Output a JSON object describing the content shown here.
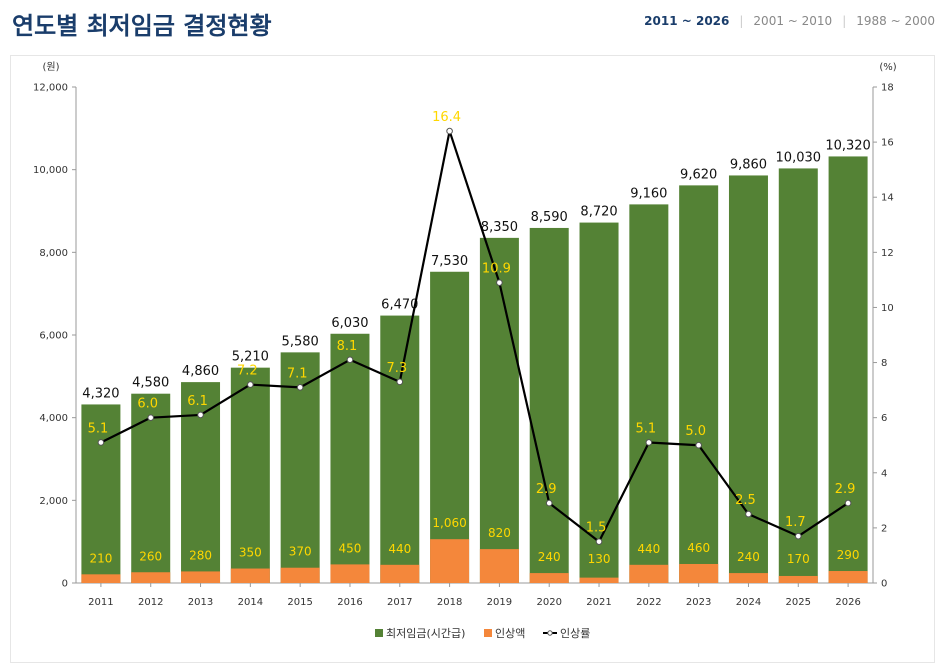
{
  "header": {
    "title": "연도별 최저임금 결정현황",
    "tabs": [
      {
        "label": "2011 ~ 2026",
        "active": true
      },
      {
        "label": "2001 ~ 2010",
        "active": false
      },
      {
        "label": "1988 ~ 2000",
        "active": false
      }
    ]
  },
  "colors": {
    "title": "#1a3d6b",
    "wage_bar": "#548235",
    "increase_bar": "#f4873b",
    "rate_line": "#000000",
    "rate_label": "#ffd700",
    "grid": "#e0e0e0"
  },
  "chart_data": {
    "type": "bar",
    "categories": [
      "2011",
      "2012",
      "2013",
      "2014",
      "2015",
      "2016",
      "2017",
      "2018",
      "2019",
      "2020",
      "2021",
      "2022",
      "2023",
      "2024",
      "2025",
      "2026"
    ],
    "series": [
      {
        "name": "최저임금(시간급)",
        "type": "bar",
        "axis": "left",
        "values": [
          4320,
          4580,
          4860,
          5210,
          5580,
          6030,
          6470,
          7530,
          8350,
          8590,
          8720,
          9160,
          9620,
          9860,
          10030,
          10320
        ],
        "labels": [
          "4,320",
          "4,580",
          "4,860",
          "5,210",
          "5,580",
          "6,030",
          "6,470",
          "7,530",
          "8,350",
          "8,590",
          "8,720",
          "9,160",
          "9,620",
          "9,860",
          "10,030",
          "10,320"
        ]
      },
      {
        "name": "인상액",
        "type": "bar",
        "axis": "left",
        "values": [
          210,
          260,
          280,
          350,
          370,
          450,
          440,
          1060,
          820,
          240,
          130,
          440,
          460,
          240,
          170,
          290
        ],
        "labels": [
          "210",
          "260",
          "280",
          "350",
          "370",
          "450",
          "440",
          "1,060",
          "820",
          "240",
          "130",
          "440",
          "460",
          "240",
          "170",
          "290"
        ]
      },
      {
        "name": "인상률",
        "type": "line",
        "axis": "right",
        "values": [
          5.1,
          6.0,
          6.1,
          7.2,
          7.1,
          8.1,
          7.3,
          16.4,
          10.9,
          2.9,
          1.5,
          5.1,
          5.0,
          2.5,
          1.7,
          2.9
        ],
        "labels": [
          "5.1",
          "6.0",
          "6.1",
          "7.2",
          "7.1",
          "8.1",
          "7.3",
          "16.4",
          "10.9",
          "2.9",
          "1.5",
          "5.1",
          "5.0",
          "2.5",
          "1.7",
          "2.9"
        ]
      }
    ],
    "y_left": {
      "unit": "(원)",
      "min": 0,
      "max": 12000,
      "ticks": [
        0,
        2000,
        4000,
        6000,
        8000,
        10000,
        12000
      ],
      "tick_labels": [
        "0",
        "2,000",
        "4,000",
        "6,000",
        "8,000",
        "10,000",
        "12,000"
      ]
    },
    "y_right": {
      "unit": "(%)",
      "min": 0,
      "max": 18,
      "ticks": [
        0,
        2,
        4,
        6,
        8,
        10,
        12,
        14,
        16,
        18
      ],
      "tick_labels": [
        "0",
        "2",
        "4",
        "6",
        "8",
        "10",
        "12",
        "14",
        "16",
        "18"
      ]
    },
    "grid": false,
    "legend_position": "bottom"
  }
}
